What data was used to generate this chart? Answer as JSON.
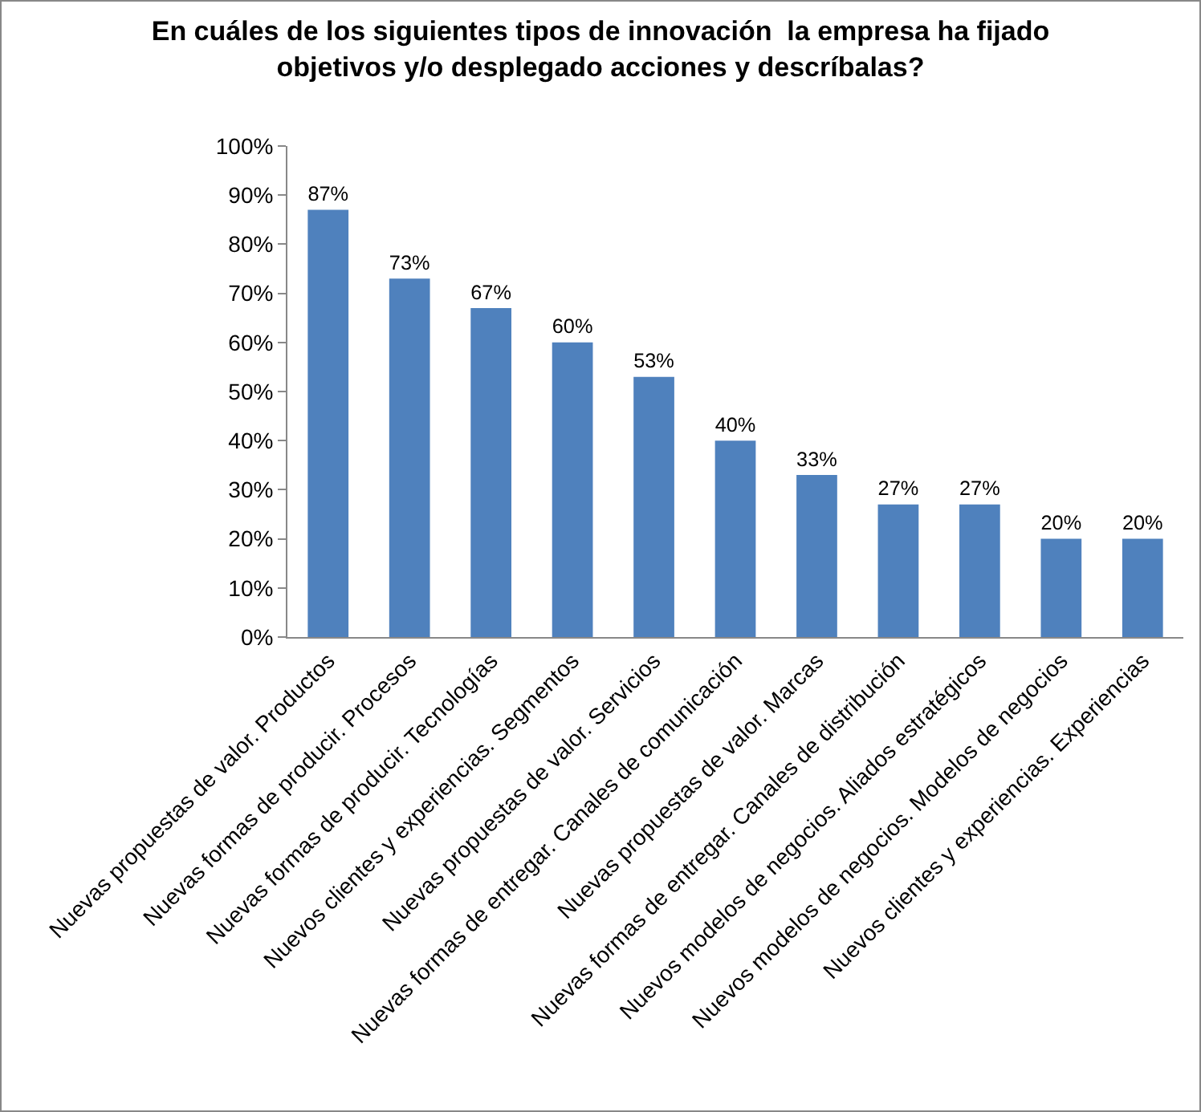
{
  "chart_data": {
    "type": "bar",
    "title": "En cuáles de los siguientes tipos de innovación  la empresa ha fijado objetivos y/o desplegado acciones y descríbalas?",
    "categories": [
      "Nuevas propuestas de valor. Productos",
      "Nuevas formas de producir. Procesos",
      "Nuevas formas de producir. Tecnologías",
      "Nuevos clientes y experiencias. Segmentos",
      "Nuevas propuestas de valor. Servicios",
      "Nuevas formas de entregar. Canales de comunicación",
      "Nuevas propuestas de valor. Marcas",
      "Nuevas formas de entregar. Canales de distribución",
      "Nuevos modelos de negocios. Aliados estratégicos",
      "Nuevos modelos de negocios. Modelos de negocios",
      "Nuevos clientes y experiencias. Experiencias"
    ],
    "values": [
      87,
      73,
      67,
      60,
      53,
      40,
      33,
      27,
      27,
      20,
      20
    ],
    "value_labels": [
      "87%",
      "73%",
      "67%",
      "60%",
      "53%",
      "40%",
      "33%",
      "27%",
      "27%",
      "20%",
      "20%"
    ],
    "color": "#4f81bd",
    "ylim": [
      0,
      100
    ],
    "yticks": [
      {
        "value": 0,
        "label": "0%"
      },
      {
        "value": 10,
        "label": "10%"
      },
      {
        "value": 20,
        "label": "20%"
      },
      {
        "value": 30,
        "label": "30%"
      },
      {
        "value": 40,
        "label": "40%"
      },
      {
        "value": 50,
        "label": "50%"
      },
      {
        "value": 60,
        "label": "60%"
      },
      {
        "value": 70,
        "label": "70%"
      },
      {
        "value": 80,
        "label": "80%"
      },
      {
        "value": 90,
        "label": "90%"
      },
      {
        "value": 100,
        "label": "100%"
      }
    ],
    "grid": false,
    "legend": false
  }
}
